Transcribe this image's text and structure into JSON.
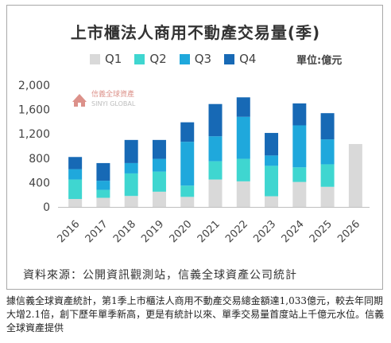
{
  "title": "上市櫃法人商用不動產交易量(季)",
  "unit_label": "單位:億元",
  "watermark": {
    "line1": "信義全球資產",
    "line2": "SINYI GLOBAL"
  },
  "source": "資料來源：公開資訊觀測站，信義全球資產公司統計",
  "caption": "據信義全球資產統計，第1季上市櫃法人商用不動產交易總金額達1,033億元，較去年同期大增2.1倍，創下歷年單季新高，更是有統計以來、單季交易量首度站上千億元水位。信義全球資產提供",
  "colors": {
    "q1": "#d9d9d9",
    "q2": "#3fd6d0",
    "q3": "#1fa8dc",
    "q4": "#1769b5"
  },
  "chart_data": {
    "type": "bar",
    "stacked": true,
    "title": "上市櫃法人商用不動產交易量(季)",
    "unit": "單位:億元",
    "categories": [
      "2016",
      "2017",
      "2018",
      "2019",
      "2020",
      "2021",
      "2022",
      "2023",
      "2024",
      "2025",
      "2026"
    ],
    "series": [
      {
        "name": "Q1",
        "values": [
          130,
          150,
          180,
          250,
          165,
          450,
          420,
          175,
          410,
          330,
          1033
        ]
      },
      {
        "name": "Q2",
        "values": [
          320,
          130,
          370,
          330,
          185,
          300,
          370,
          500,
          240,
          370,
          0
        ]
      },
      {
        "name": "Q3",
        "values": [
          170,
          150,
          170,
          210,
          720,
          410,
          690,
          170,
          690,
          410,
          0
        ]
      },
      {
        "name": "Q4",
        "values": [
          200,
          290,
          380,
          310,
          320,
          530,
          320,
          370,
          360,
          430,
          0
        ]
      }
    ],
    "ylim": [
      0,
      2000
    ],
    "yticks": [
      "0",
      "400",
      "800",
      "1,200",
      "1,600",
      "2,000"
    ],
    "grid": false,
    "legend_position": "top"
  }
}
